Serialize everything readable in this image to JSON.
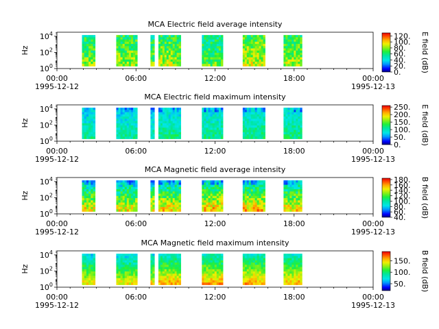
{
  "chart_data": [
    {
      "type": "heatmap",
      "title": "MCA  Electric field average intensity",
      "ylabel": "Hz",
      "y_ticks": [
        {
          "base": "10",
          "exp": "0"
        },
        {
          "base": "10",
          "exp": "2"
        },
        {
          "base": "10",
          "exp": "4"
        }
      ],
      "y_scale": "log",
      "ylim": [
        1,
        31623
      ],
      "x_ticks": [
        "00:00",
        "06:00",
        "12:00",
        "18:00",
        "00:00"
      ],
      "x_date_start": "1995-12-12",
      "x_date_end": "1995-12-13",
      "xlim": [
        "1995-12-12 00:00",
        "1995-12-13 00:00"
      ],
      "colorbar": {
        "label": "E field (dB)",
        "ticks": [
          "0.",
          "20.",
          "40.",
          "60.",
          "80.",
          "100.",
          "120."
        ],
        "range": [
          0,
          130
        ]
      },
      "palette": "gist_ncar-like (blue-cyan-green-yellow-red)",
      "data_segments_hours": [
        [
          1.9,
          2.9
        ],
        [
          4.5,
          6.1
        ],
        [
          7.1,
          7.4
        ],
        [
          7.7,
          9.4
        ],
        [
          11.0,
          12.6
        ],
        [
          14.1,
          15.8
        ],
        [
          17.2,
          18.6
        ]
      ],
      "segment_levels": [
        0.52,
        0.55,
        0.5,
        0.56,
        0.48,
        0.6,
        0.56
      ]
    },
    {
      "type": "heatmap",
      "title": "MCA  Electric field maximum intensity",
      "ylabel": "Hz",
      "y_ticks": [
        {
          "base": "10",
          "exp": "0"
        },
        {
          "base": "10",
          "exp": "2"
        },
        {
          "base": "10",
          "exp": "4"
        }
      ],
      "y_scale": "log",
      "ylim": [
        1,
        31623
      ],
      "x_ticks": [
        "00:00",
        "06:00",
        "12:00",
        "18:00",
        "00:00"
      ],
      "x_date_start": "1995-12-12",
      "x_date_end": "1995-12-13",
      "xlim": [
        "1995-12-12 00:00",
        "1995-12-13 00:00"
      ],
      "colorbar": {
        "label": "E field (dB)",
        "ticks": [
          "0.",
          "50.",
          "100.",
          "150.",
          "200.",
          "250."
        ],
        "range": [
          0,
          260
        ]
      },
      "palette": "gist_ncar-like (blue-cyan-green-yellow-red)",
      "data_segments_hours": [
        [
          1.9,
          2.9
        ],
        [
          4.5,
          6.1
        ],
        [
          7.1,
          7.4
        ],
        [
          7.7,
          9.4
        ],
        [
          11.0,
          12.6
        ],
        [
          14.1,
          15.8
        ],
        [
          17.2,
          18.6
        ]
      ],
      "segment_levels": [
        0.34,
        0.33,
        0.32,
        0.36,
        0.36,
        0.37,
        0.37
      ]
    },
    {
      "type": "heatmap",
      "title": "MCA  Magnetic field average intensity",
      "ylabel": "Hz",
      "y_ticks": [
        {
          "base": "10",
          "exp": "0"
        },
        {
          "base": "10",
          "exp": "2"
        },
        {
          "base": "10",
          "exp": "4"
        }
      ],
      "y_scale": "log",
      "ylim": [
        1,
        31623
      ],
      "x_ticks": [
        "00:00",
        "06:00",
        "12:00",
        "18:00",
        "00:00"
      ],
      "x_date_start": "1995-12-12",
      "x_date_end": "1995-12-13",
      "xlim": [
        "1995-12-12 00:00",
        "1995-12-13 00:00"
      ],
      "colorbar": {
        "label": "B field (dB)",
        "ticks": [
          "40.",
          "60.",
          "80.",
          "100.",
          "120.",
          "140.",
          "160.",
          "180."
        ],
        "range": [
          40,
          185
        ]
      },
      "palette": "gist_ncar-like (blue-cyan-green-yellow-red)",
      "data_segments_hours": [
        [
          1.9,
          2.9
        ],
        [
          4.5,
          6.1
        ],
        [
          7.1,
          7.4
        ],
        [
          7.7,
          9.4
        ],
        [
          11.0,
          12.6
        ],
        [
          14.1,
          15.8
        ],
        [
          17.2,
          18.6
        ]
      ],
      "segment_levels": [
        0.5,
        0.48,
        0.5,
        0.52,
        0.55,
        0.55,
        0.52
      ]
    },
    {
      "type": "heatmap",
      "title": "MCA  Magnetic field maximum intensity",
      "ylabel": "Hz",
      "y_ticks": [
        {
          "base": "10",
          "exp": "0"
        },
        {
          "base": "10",
          "exp": "2"
        },
        {
          "base": "10",
          "exp": "4"
        }
      ],
      "y_scale": "log",
      "ylim": [
        1,
        31623
      ],
      "x_ticks": [
        "00:00",
        "06:00",
        "12:00",
        "18:00",
        "00:00"
      ],
      "x_date_start": "1995-12-12",
      "x_date_end": "1995-12-13",
      "xlim": [
        "1995-12-12 00:00",
        "1995-12-13 00:00"
      ],
      "colorbar": {
        "label": "B field (dB)",
        "ticks": [
          "50.",
          "100.",
          "150."
        ],
        "range": [
          20,
          190
        ]
      },
      "palette": "gist_ncar-like (blue-cyan-green-yellow-red)",
      "data_segments_hours": [
        [
          1.9,
          2.9
        ],
        [
          4.5,
          6.1
        ],
        [
          7.1,
          7.4
        ],
        [
          7.7,
          9.4
        ],
        [
          11.0,
          12.6
        ],
        [
          14.1,
          15.8
        ],
        [
          17.2,
          18.6
        ]
      ],
      "segment_levels": [
        0.5,
        0.48,
        0.5,
        0.55,
        0.57,
        0.57,
        0.55
      ]
    }
  ]
}
